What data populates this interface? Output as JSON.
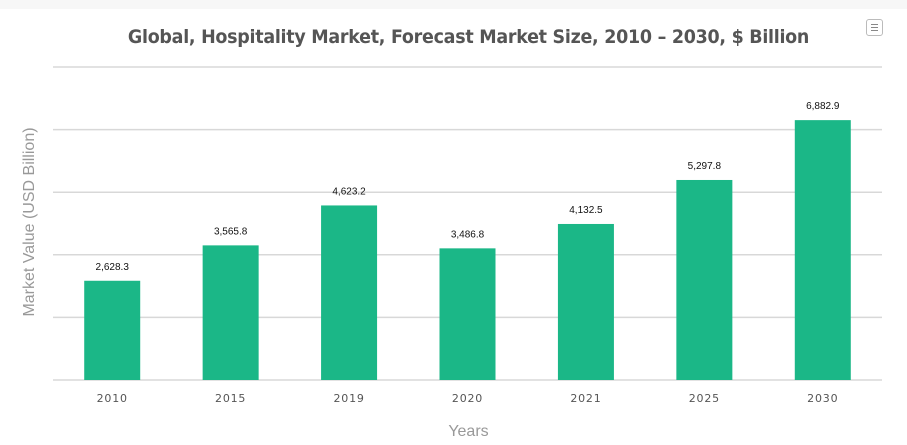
{
  "chart_data": {
    "type": "bar",
    "title": "Global, Hospitality Market, Forecast Market Size, 2010 – 2030, $ Billion",
    "xlabel": "Years",
    "ylabel": "Market Value (USD Billion)",
    "categories": [
      "2010",
      "2015",
      "2019",
      "2020",
      "2021",
      "2025",
      "2030"
    ],
    "values": [
      2628.3,
      3565.8,
      4623.2,
      3486.8,
      4132.5,
      5297.8,
      6882.9
    ],
    "data_labels": [
      "2,628.3",
      "3,565.8",
      "4,623.2",
      "3,486.8",
      "4,132.5",
      "5,297.8",
      "6,882.9"
    ],
    "ylim": [
      0,
      8290
    ],
    "grid": true,
    "bar_color": "#1bb787"
  },
  "menu_icon": "hamburger-menu-icon"
}
